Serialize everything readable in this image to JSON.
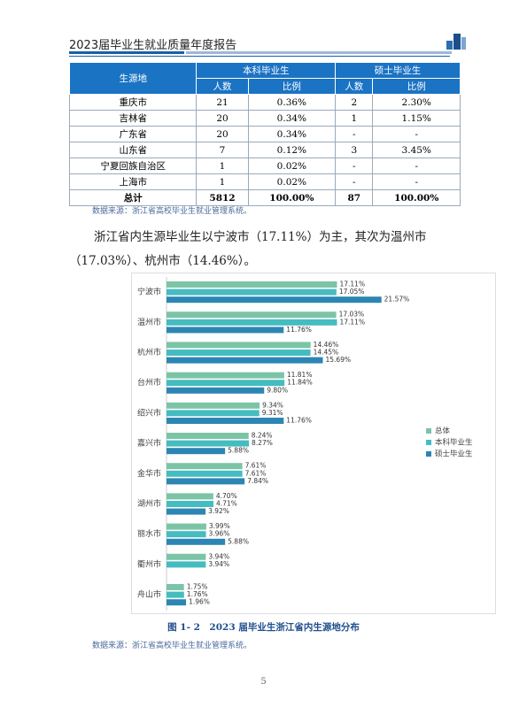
{
  "header": {
    "title": "2023届毕业生就业质量年度报告"
  },
  "table": {
    "header": [
      [
        "生源地",
        "本科毕业生",
        "硕士毕业生"
      ],
      [
        "人数",
        "比例",
        "人数",
        "比例"
      ]
    ],
    "rows": [
      [
        "重庆市",
        "21",
        "0.36%",
        "2",
        "2.30%"
      ],
      [
        "吉林省",
        "20",
        "0.34%",
        "1",
        "1.15%"
      ],
      [
        "广东省",
        "20",
        "0.34%",
        "-",
        "-"
      ],
      [
        "山东省",
        "7",
        "0.12%",
        "3",
        "3.45%"
      ],
      [
        "宁夏回族自治区",
        "1",
        "0.02%",
        "-",
        "-"
      ],
      [
        "上海市",
        "1",
        "0.02%",
        "-",
        "-"
      ],
      [
        "总计",
        "5812",
        "100.00%",
        "87",
        "100.00%"
      ]
    ]
  },
  "table_source": "数据来源：浙江省高校毕业生就业管理系统。",
  "paragraph": "浙江省内生源毕业生以宁波市（17.11%）为主，其次为温州市（17.03%）、杭州市（14.46%）。",
  "chart_data": {
    "type": "bar",
    "orientation": "horizontal",
    "legend": "right",
    "categories": [
      "宁波市",
      "温州市",
      "杭州市",
      "台州市",
      "绍兴市",
      "嘉兴市",
      "金华市",
      "湖州市",
      "丽水市",
      "衢州市",
      "舟山市"
    ],
    "series": [
      {
        "name": "总体",
        "color": "#7cc4a6",
        "values": [
          17.11,
          17.03,
          14.46,
          11.81,
          9.34,
          8.24,
          7.61,
          4.7,
          3.99,
          3.94,
          1.75
        ],
        "value_labels": [
          "17.11%",
          "17.03%",
          "14.46%",
          "11.81%",
          "9.34%",
          "8.24%",
          "7.61%",
          "4.70%",
          "3.99%",
          "3.94%",
          "1.75%"
        ]
      },
      {
        "name": "本科毕业生",
        "color": "#45bcc0",
        "values": [
          17.05,
          17.11,
          14.45,
          11.84,
          9.31,
          8.27,
          7.61,
          4.71,
          3.96,
          3.94,
          1.76
        ],
        "value_labels": [
          "17.05%",
          "17.11%",
          "14.45%",
          "11.84%",
          "9.31%",
          "8.27%",
          "7.61%",
          "4.71%",
          "3.96%",
          "3.94%",
          "1.76%"
        ]
      },
      {
        "name": "硕士毕业生",
        "color": "#2c86b3",
        "values": [
          21.57,
          11.76,
          15.69,
          9.8,
          11.76,
          5.88,
          7.84,
          3.92,
          5.88,
          null,
          1.96
        ],
        "value_labels": [
          "21.57%",
          "11.76%",
          "15.69%",
          "9.80%",
          "11.76%",
          "5.88%",
          "7.84%",
          "3.92%",
          "5.88%",
          null,
          "1.96%"
        ]
      }
    ]
  },
  "figure_caption": "图 1- 2　2023 届毕业生浙江省内生源地分布",
  "figure_source": "数据来源：浙江省高校毕业生就业管理系统。",
  "page_number": "5"
}
